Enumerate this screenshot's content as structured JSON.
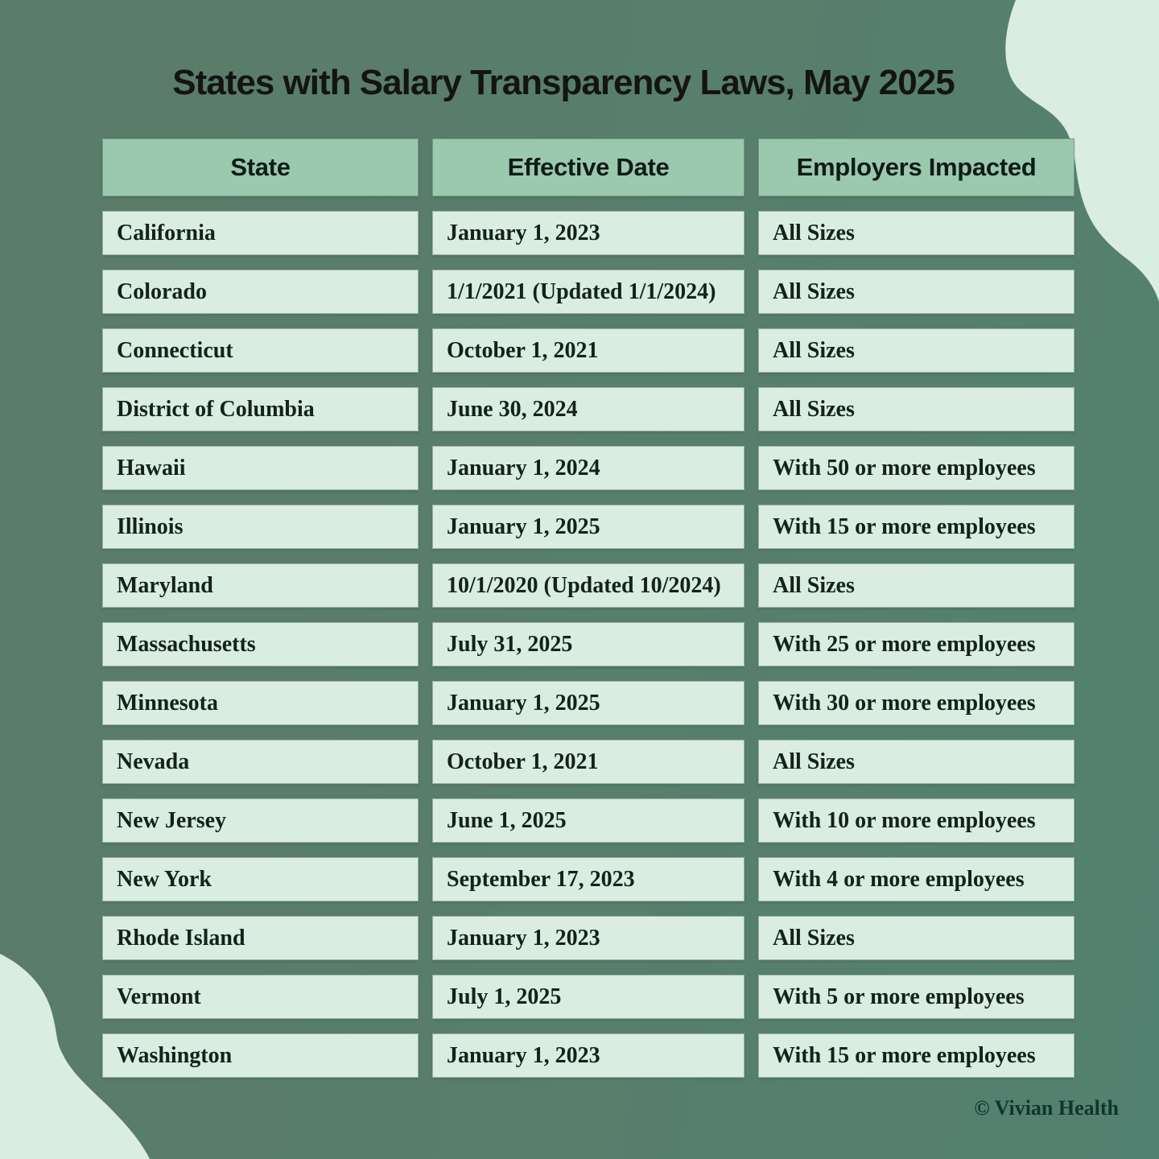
{
  "title": "States with Salary Transparency Laws, May 2025",
  "chart_data": {
    "type": "table",
    "title": "States with Salary Transparency Laws, May 2025",
    "columns": [
      "State",
      "Effective Date",
      "Employers Impacted"
    ],
    "rows": [
      [
        "California",
        "January 1, 2023",
        "All Sizes"
      ],
      [
        "Colorado",
        "1/1/2021 (Updated 1/1/2024)",
        "All Sizes"
      ],
      [
        "Connecticut",
        "October 1, 2021",
        "All Sizes"
      ],
      [
        "District of Columbia",
        "June 30, 2024",
        "All Sizes"
      ],
      [
        "Hawaii",
        "January 1, 2024",
        "With 50 or more employees"
      ],
      [
        "Illinois",
        "January 1, 2025",
        "With 15 or more employees"
      ],
      [
        "Maryland",
        "10/1/2020 (Updated 10/2024)",
        "All Sizes"
      ],
      [
        "Massachusetts",
        "July 31, 2025",
        "With 25 or more employees"
      ],
      [
        "Minnesota",
        "January 1, 2025",
        "With 30 or more employees"
      ],
      [
        "Nevada",
        "October 1, 2021",
        "All Sizes"
      ],
      [
        "New Jersey",
        "June 1, 2025",
        "With 10 or more employees"
      ],
      [
        "New York",
        "September 17, 2023",
        "With 4 or more employees"
      ],
      [
        "Rhode Island",
        "January 1, 2023",
        "All Sizes"
      ],
      [
        "Vermont",
        "July 1, 2025",
        "With 5 or more employees"
      ],
      [
        "Washington",
        "January 1, 2023",
        "With 15 or more employees"
      ]
    ]
  },
  "table": {
    "headers": [
      "State",
      "Effective Date",
      "Employers Impacted"
    ]
  },
  "footer": {
    "credit": "© Vivian Health"
  },
  "colors": {
    "bg_left": "#5a7c68",
    "bg_mid": "#587e6c",
    "bg_right": "#538171",
    "header_bg": "#9bc9ae",
    "cell_bg": "#d9ede1",
    "blob": "#d9ede1",
    "title_text": "#141414",
    "header_text": "#0e1c15",
    "cell_text": "#15211b",
    "credit_text": "#10352a"
  }
}
